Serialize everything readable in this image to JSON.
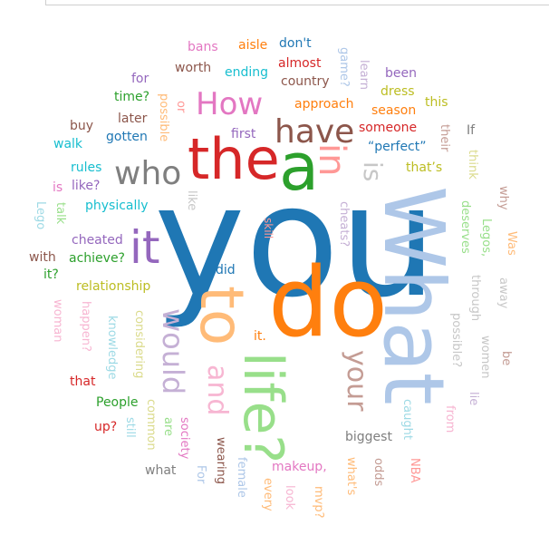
{
  "word_cloud": {
    "words": [
      {
        "text": "you",
        "color": "#1f77b4"
      },
      {
        "text": "What",
        "color": "#aec7e8"
      },
      {
        "text": "do",
        "color": "#ff7f0e"
      },
      {
        "text": "a",
        "color": "#2ca02c"
      },
      {
        "text": "the",
        "color": "#d62728"
      },
      {
        "text": "to",
        "color": "#ffbb78"
      },
      {
        "text": "life?",
        "color": "#98df8a"
      },
      {
        "text": "it",
        "color": "#9467bd"
      },
      {
        "text": "have",
        "color": "#8c564b"
      },
      {
        "text": "How",
        "color": "#e377c2"
      },
      {
        "text": "who",
        "color": "#7f7f7f"
      },
      {
        "text": "in",
        "color": "#ff9896"
      },
      {
        "text": "would",
        "color": "#c5b0d5"
      },
      {
        "text": "and",
        "color": "#f7b6d2"
      },
      {
        "text": "your",
        "color": "#c49c94"
      },
      {
        "text": "is",
        "color": "#c7c7c7"
      },
      {
        "text": "bans",
        "color": "#e377c2"
      },
      {
        "text": "aisle",
        "color": "#ff7f0e"
      },
      {
        "text": "don't",
        "color": "#1f77b4"
      },
      {
        "text": "game?",
        "color": "#aec7e8"
      },
      {
        "text": "learn",
        "color": "#c5b0d5"
      },
      {
        "text": "been",
        "color": "#9467bd"
      },
      {
        "text": "worth",
        "color": "#8c564b"
      },
      {
        "text": "ending",
        "color": "#17becf"
      },
      {
        "text": "almost",
        "color": "#d62728"
      },
      {
        "text": "country",
        "color": "#8c564b"
      },
      {
        "text": "dress",
        "color": "#bcbd22"
      },
      {
        "text": "for",
        "color": "#9467bd"
      },
      {
        "text": "time?",
        "color": "#2ca02c"
      },
      {
        "text": "possible",
        "color": "#ffbb78"
      },
      {
        "text": "or",
        "color": "#ff9896"
      },
      {
        "text": "approach",
        "color": "#ff7f0e"
      },
      {
        "text": "this",
        "color": "#bcbd22"
      },
      {
        "text": "season",
        "color": "#ff7f0e"
      },
      {
        "text": "buy",
        "color": "#8c564b"
      },
      {
        "text": "later",
        "color": "#8c564b"
      },
      {
        "text": "someone",
        "color": "#d62728"
      },
      {
        "text": "their",
        "color": "#c49c94"
      },
      {
        "text": "If",
        "color": "#7f7f7f"
      },
      {
        "text": "gotten",
        "color": "#1f77b4"
      },
      {
        "text": "first",
        "color": "#9467bd"
      },
      {
        "text": "walk",
        "color": "#17becf"
      },
      {
        "text": "“perfect”",
        "color": "#1f77b4"
      },
      {
        "text": "think",
        "color": "#dbdb8d"
      },
      {
        "text": "rules",
        "color": "#17becf"
      },
      {
        "text": "that’s",
        "color": "#bcbd22"
      },
      {
        "text": "is",
        "color": "#e377c2"
      },
      {
        "text": "like?",
        "color": "#9467bd"
      },
      {
        "text": "why",
        "color": "#c49c94"
      },
      {
        "text": "talk",
        "color": "#98df8a"
      },
      {
        "text": "like",
        "color": "#c7c7c7"
      },
      {
        "text": "Lego",
        "color": "#9edae5"
      },
      {
        "text": "physically",
        "color": "#17becf"
      },
      {
        "text": "cheats?",
        "color": "#c5b0d5"
      },
      {
        "text": "deserves",
        "color": "#98df8a"
      },
      {
        "text": "Legos,",
        "color": "#98df8a"
      },
      {
        "text": "Was",
        "color": "#ffbb78"
      },
      {
        "text": "skill",
        "color": "#ff9896"
      },
      {
        "text": "cheated",
        "color": "#9467bd"
      },
      {
        "text": "with",
        "color": "#8c564b"
      },
      {
        "text": "achieve?",
        "color": "#2ca02c"
      },
      {
        "text": "it?",
        "color": "#2ca02c"
      },
      {
        "text": "did",
        "color": "#1f77b4"
      },
      {
        "text": "away",
        "color": "#c7c7c7"
      },
      {
        "text": "relationship",
        "color": "#bcbd22"
      },
      {
        "text": "through",
        "color": "#c7c7c7"
      },
      {
        "text": "woman",
        "color": "#f7b6d2"
      },
      {
        "text": "happen?",
        "color": "#f7b6d2"
      },
      {
        "text": "knowledge",
        "color": "#9edae5"
      },
      {
        "text": "considering",
        "color": "#dbdb8d"
      },
      {
        "text": "it.",
        "color": "#ff7f0e"
      },
      {
        "text": "possible?",
        "color": "#c7c7c7"
      },
      {
        "text": "women",
        "color": "#c7c7c7"
      },
      {
        "text": "be",
        "color": "#c49c94"
      },
      {
        "text": "that",
        "color": "#d62728"
      },
      {
        "text": "lie",
        "color": "#c5b0d5"
      },
      {
        "text": "People",
        "color": "#2ca02c"
      },
      {
        "text": "common",
        "color": "#dbdb8d"
      },
      {
        "text": "caught",
        "color": "#9edae5"
      },
      {
        "text": "from",
        "color": "#f7b6d2"
      },
      {
        "text": "up?",
        "color": "#d62728"
      },
      {
        "text": "still",
        "color": "#9edae5"
      },
      {
        "text": "are",
        "color": "#98df8a"
      },
      {
        "text": "society",
        "color": "#e377c2"
      },
      {
        "text": "biggest",
        "color": "#7f7f7f"
      },
      {
        "text": "wearing",
        "color": "#8c564b"
      },
      {
        "text": "what",
        "color": "#7f7f7f"
      },
      {
        "text": "For",
        "color": "#aec7e8"
      },
      {
        "text": "female",
        "color": "#aec7e8"
      },
      {
        "text": "makeup,",
        "color": "#e377c2"
      },
      {
        "text": "what's",
        "color": "#ffbb78"
      },
      {
        "text": "odds",
        "color": "#c49c94"
      },
      {
        "text": "NBA",
        "color": "#ff9896"
      },
      {
        "text": "every",
        "color": "#ffbb78"
      },
      {
        "text": "look",
        "color": "#f7b6d2"
      },
      {
        "text": "mvp?",
        "color": "#ffbb78"
      }
    ]
  }
}
